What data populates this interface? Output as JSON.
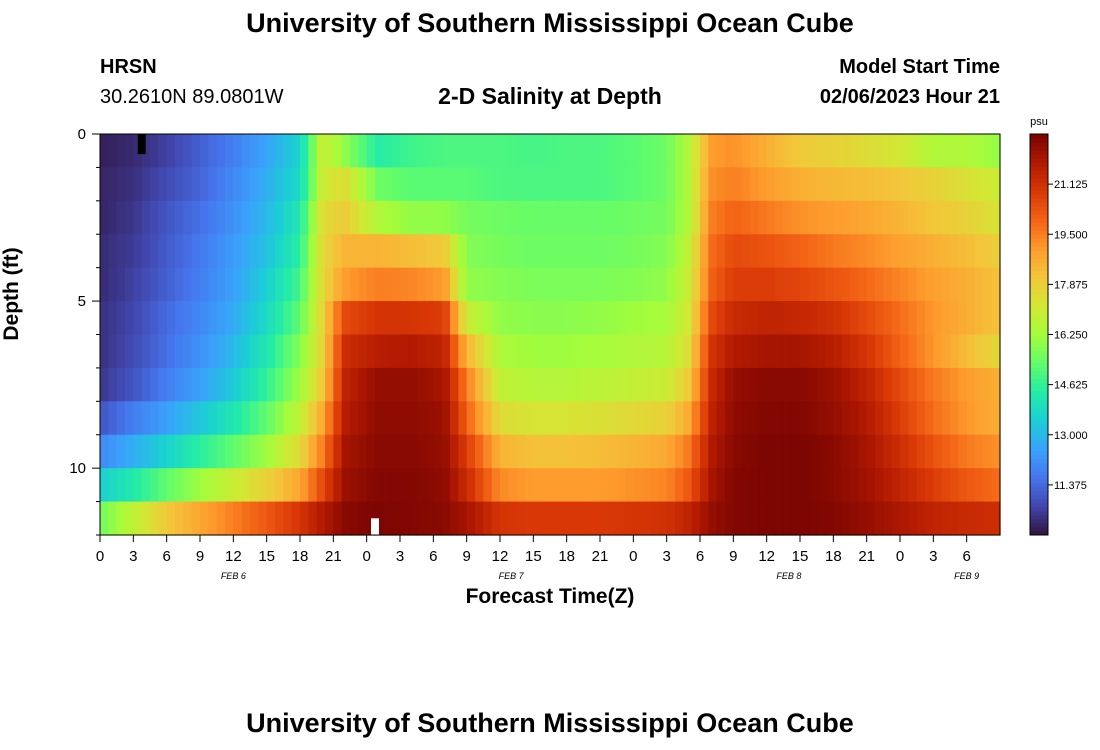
{
  "header": {
    "title": "University of Southern Mississippi Ocean Cube",
    "station": "HRSN",
    "coords": "30.2610N  89.0801W",
    "plot_title": "2-D Salinity at Depth",
    "model_start_label": "Model Start Time",
    "model_start_value": "02/06/2023 Hour 21"
  },
  "footer": {
    "title": "University of Southern Mississippi Ocean Cube"
  },
  "colors": {
    "background": "#ffffff",
    "colormap": [
      "#30123b",
      "#4145ab",
      "#4675ed",
      "#39a2fc",
      "#1bcfd4",
      "#24eca6",
      "#61fc6c",
      "#a4fc3b",
      "#d1e834",
      "#f3c63a",
      "#fe9b2d",
      "#f36315",
      "#d93806",
      "#b11901",
      "#7a0402"
    ]
  },
  "chart_data": {
    "type": "heatmap",
    "title": "2-D Salinity at Depth",
    "xlabel": "Forecast Time(Z)",
    "ylabel": "Depth (ft)",
    "x_range_hours": [
      0,
      81
    ],
    "x_tick_labels": [
      "0",
      "3",
      "6",
      "9",
      "12",
      "15",
      "18",
      "21",
      "0",
      "3",
      "6",
      "9",
      "12",
      "15",
      "18",
      "21",
      "0",
      "3",
      "6",
      "9",
      "12",
      "15",
      "18",
      "21",
      "0",
      "3",
      "6"
    ],
    "day_labels": [
      {
        "text": "FEB 6",
        "hour": 12
      },
      {
        "text": "FEB 7",
        "hour": 37
      },
      {
        "text": "FEB 8",
        "hour": 62
      },
      {
        "text": "FEB 9",
        "hour": 78
      }
    ],
    "y_range_ft": [
      0,
      12
    ],
    "y_tick_labels": [
      "0",
      "5",
      "10"
    ],
    "y_tick_values": [
      0,
      5,
      10
    ],
    "depth_levels": 12,
    "colorbar": {
      "unit": "psu",
      "range": [
        9.75,
        22.75
      ],
      "tick_labels": [
        "11.375",
        "13.000",
        "14.625",
        "16.250",
        "17.875",
        "19.500",
        "21.125"
      ],
      "tick_values": [
        11.375,
        13.0,
        14.625,
        16.25,
        17.875,
        19.5,
        21.125
      ]
    },
    "profiles": {
      "hours": [
        0,
        3,
        6,
        9,
        12,
        15,
        18,
        20,
        22,
        25,
        28,
        31,
        33,
        36,
        39,
        42,
        45,
        48,
        51,
        53,
        55,
        57,
        60,
        63,
        66,
        69,
        72,
        75,
        78,
        81
      ],
      "levels": [
        [
          10.0,
          10.2,
          10.6,
          11.2,
          11.8,
          12.6,
          13.6,
          17.0,
          16.0,
          14.4,
          14.8,
          15.0,
          15.0,
          15.0,
          14.9,
          15.0,
          15.0,
          15.2,
          15.5,
          16.5,
          19.0,
          19.2,
          18.6,
          18.0,
          17.8,
          17.5,
          17.2,
          16.5,
          16.5,
          16.0
        ],
        [
          10.1,
          10.3,
          10.8,
          11.3,
          12.0,
          12.8,
          13.8,
          17.0,
          17.5,
          15.5,
          15.2,
          15.2,
          15.2,
          15.0,
          15.0,
          15.0,
          15.0,
          15.2,
          15.5,
          16.5,
          19.2,
          19.5,
          19.0,
          18.6,
          18.4,
          18.3,
          18.1,
          17.8,
          17.4,
          17.0
        ],
        [
          10.1,
          10.4,
          11.0,
          11.5,
          12.2,
          13.0,
          14.2,
          17.5,
          18.0,
          16.5,
          16.0,
          16.0,
          15.6,
          15.5,
          15.4,
          15.4,
          15.4,
          15.5,
          15.6,
          16.5,
          19.5,
          20.0,
          19.6,
          19.2,
          19.0,
          18.8,
          18.5,
          18.1,
          17.8,
          17.3
        ],
        [
          10.2,
          10.5,
          11.1,
          11.7,
          12.4,
          13.2,
          14.5,
          17.6,
          18.5,
          18.5,
          18.3,
          18.0,
          15.8,
          15.6,
          15.5,
          15.5,
          15.5,
          15.6,
          15.8,
          16.8,
          19.8,
          20.5,
          20.3,
          20.0,
          19.6,
          19.3,
          18.9,
          18.6,
          18.3,
          17.9
        ],
        [
          10.2,
          10.6,
          11.2,
          11.8,
          12.5,
          13.5,
          14.9,
          17.6,
          19.0,
          19.5,
          19.4,
          19.0,
          16.0,
          15.8,
          15.7,
          15.7,
          15.7,
          15.8,
          16.0,
          17.0,
          20.0,
          20.8,
          20.8,
          20.6,
          20.3,
          19.9,
          19.4,
          18.9,
          18.6,
          18.2
        ],
        [
          10.3,
          10.7,
          11.4,
          12.0,
          12.7,
          13.8,
          15.3,
          17.7,
          20.5,
          21.0,
          21.0,
          20.8,
          17.0,
          16.0,
          15.9,
          15.9,
          16.0,
          16.2,
          16.3,
          17.2,
          20.5,
          21.3,
          21.5,
          21.4,
          21.1,
          20.5,
          19.8,
          19.1,
          18.6,
          18.2
        ],
        [
          10.3,
          10.8,
          11.5,
          12.2,
          13.0,
          14.2,
          15.8,
          17.7,
          21.2,
          21.7,
          21.8,
          21.5,
          18.5,
          16.4,
          16.2,
          16.2,
          16.3,
          16.5,
          16.6,
          17.5,
          21.0,
          21.8,
          22.0,
          22.0,
          21.7,
          21.0,
          20.0,
          19.1,
          18.3,
          17.6
        ],
        [
          10.4,
          11.0,
          11.8,
          12.5,
          13.4,
          14.6,
          16.2,
          18.0,
          21.5,
          22.3,
          22.3,
          22.0,
          19.5,
          16.8,
          16.6,
          16.6,
          16.7,
          16.9,
          17.0,
          18.0,
          21.3,
          22.3,
          22.5,
          22.5,
          22.2,
          21.5,
          20.5,
          19.6,
          19.0,
          18.6
        ],
        [
          11.0,
          11.8,
          12.5,
          13.3,
          14.2,
          15.3,
          16.8,
          18.7,
          21.7,
          22.4,
          22.4,
          22.2,
          20.0,
          17.5,
          17.3,
          17.3,
          17.4,
          17.6,
          17.8,
          18.7,
          21.5,
          22.4,
          22.6,
          22.6,
          22.3,
          21.8,
          20.8,
          19.8,
          19.1,
          18.6
        ],
        [
          12.0,
          12.8,
          13.6,
          14.5,
          15.3,
          16.2,
          17.6,
          19.5,
          22.0,
          22.5,
          22.5,
          22.3,
          20.8,
          18.5,
          18.2,
          18.2,
          18.3,
          18.5,
          18.7,
          19.6,
          21.8,
          22.5,
          22.7,
          22.7,
          22.5,
          22.0,
          21.2,
          20.3,
          19.6,
          19.2
        ],
        [
          13.5,
          14.3,
          15.3,
          16.2,
          17.0,
          17.8,
          18.8,
          20.5,
          22.2,
          22.6,
          22.6,
          22.4,
          21.3,
          19.3,
          19.0,
          19.0,
          19.0,
          19.2,
          19.4,
          20.2,
          22.0,
          22.6,
          22.7,
          22.7,
          22.5,
          22.1,
          21.5,
          20.8,
          20.2,
          19.8
        ],
        [
          15.5,
          16.8,
          18.0,
          18.8,
          19.5,
          20.2,
          21.0,
          21.8,
          22.5,
          22.7,
          22.6,
          22.5,
          22.0,
          21.0,
          20.9,
          20.9,
          20.9,
          21.0,
          21.1,
          21.5,
          22.3,
          22.6,
          22.7,
          22.7,
          22.6,
          22.3,
          21.9,
          21.5,
          21.3,
          21.2
        ]
      ]
    },
    "markers": [
      {
        "hour": 3.75,
        "depth_start": 0,
        "depth_end": 0.6,
        "color": "#000000"
      },
      {
        "hour": 24.75,
        "depth_start": 11.5,
        "depth_end": 12,
        "color": "#ffffff"
      }
    ]
  }
}
